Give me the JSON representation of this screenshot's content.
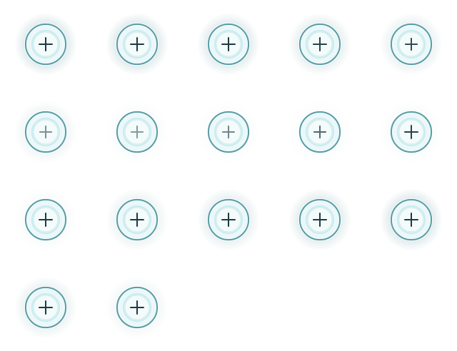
{
  "sheet": {
    "name": "add-button-sprite-frames",
    "background": "#ffffff",
    "columns": 5,
    "frame_count": 17
  },
  "style": {
    "ring_dark": "#5a9ba5",
    "ring_light": "#e8fbfd",
    "ring_glow": "#c6eef3",
    "inner_fill": "#eef7f8",
    "plus_color": "#1d3a40",
    "halo_color": "#a7c4c8"
  },
  "frames": [
    {
      "icon": "plus-icon",
      "halo": 0.55,
      "plus_opacity": 1.0,
      "plus_size": 1.0
    },
    {
      "icon": "plus-icon",
      "halo": 0.55,
      "plus_opacity": 1.0,
      "plus_size": 1.0
    },
    {
      "icon": "plus-icon",
      "halo": 0.5,
      "plus_opacity": 1.0,
      "plus_size": 1.0
    },
    {
      "icon": "plus-icon",
      "halo": 0.42,
      "plus_opacity": 0.95,
      "plus_size": 1.0
    },
    {
      "icon": "plus-icon",
      "halo": 0.35,
      "plus_opacity": 0.9,
      "plus_size": 0.9
    },
    {
      "icon": "plus-icon",
      "halo": 0.25,
      "plus_opacity": 0.55,
      "plus_size": 0.9
    },
    {
      "icon": "plus-icon",
      "halo": 0.1,
      "plus_opacity": 0.5,
      "plus_size": 0.9
    },
    {
      "icon": "plus-icon",
      "halo": 0.08,
      "plus_opacity": 0.6,
      "plus_size": 0.9
    },
    {
      "icon": "plus-icon",
      "halo": 0.08,
      "plus_opacity": 0.75,
      "plus_size": 0.9
    },
    {
      "icon": "plus-icon",
      "halo": 0.1,
      "plus_opacity": 0.95,
      "plus_size": 1.0
    },
    {
      "icon": "plus-icon",
      "halo": 0.12,
      "plus_opacity": 1.0,
      "plus_size": 1.0
    },
    {
      "icon": "plus-icon",
      "halo": 0.3,
      "plus_opacity": 1.0,
      "plus_size": 1.0
    },
    {
      "icon": "plus-icon",
      "halo": 0.4,
      "plus_opacity": 1.0,
      "plus_size": 1.0
    },
    {
      "icon": "plus-icon",
      "halo": 0.48,
      "plus_opacity": 1.0,
      "plus_size": 1.0
    },
    {
      "icon": "plus-icon",
      "halo": 0.55,
      "plus_opacity": 1.0,
      "plus_size": 1.0
    },
    {
      "icon": "plus-icon",
      "halo": 0.35,
      "plus_opacity": 1.0,
      "plus_size": 1.0
    },
    {
      "icon": "plus-icon",
      "halo": 0.2,
      "plus_opacity": 1.0,
      "plus_size": 1.0
    }
  ]
}
